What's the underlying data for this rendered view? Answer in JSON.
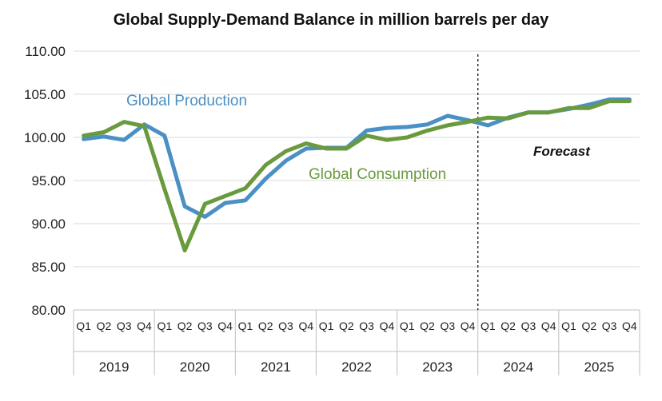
{
  "chart_data": {
    "type": "line",
    "title": "Global Supply-Demand Balance in million barrels per day",
    "ylim": [
      80,
      110
    ],
    "yticks": [
      "80.00",
      "85.00",
      "90.00",
      "95.00",
      "100.00",
      "105.00",
      "110.00"
    ],
    "years": [
      "2019",
      "2020",
      "2021",
      "2022",
      "2023",
      "2024",
      "2025"
    ],
    "quarters": [
      "Q1",
      "Q2",
      "Q3",
      "Q4"
    ],
    "categories": [
      "2019 Q1",
      "2019 Q2",
      "2019 Q3",
      "2019 Q4",
      "2020 Q1",
      "2020 Q2",
      "2020 Q3",
      "2020 Q4",
      "2021 Q1",
      "2021 Q2",
      "2021 Q3",
      "2021 Q4",
      "2022 Q1",
      "2022 Q2",
      "2022 Q3",
      "2022 Q4",
      "2023 Q1",
      "2023 Q2",
      "2023 Q3",
      "2023 Q4",
      "2024 Q1",
      "2024 Q2",
      "2024 Q3",
      "2024 Q4",
      "2025 Q1",
      "2025 Q2",
      "2025 Q3",
      "2025 Q4"
    ],
    "series": [
      {
        "name": "Global Production",
        "color": "#4a90c4",
        "values": [
          99.8,
          100.1,
          99.7,
          101.5,
          100.2,
          92.0,
          90.8,
          92.4,
          92.7,
          95.2,
          97.3,
          98.7,
          98.8,
          98.8,
          100.8,
          101.1,
          101.2,
          101.5,
          102.5,
          102.0,
          101.4,
          102.3,
          102.9,
          102.9,
          103.3,
          103.8,
          104.4,
          104.4
        ]
      },
      {
        "name": "Global Consumption",
        "color": "#6a9a3e",
        "values": [
          100.2,
          100.6,
          101.8,
          101.3,
          94.0,
          86.9,
          92.3,
          93.2,
          94.1,
          96.8,
          98.4,
          99.3,
          98.7,
          98.7,
          100.2,
          99.7,
          100.0,
          100.8,
          101.4,
          101.8,
          102.3,
          102.2,
          102.9,
          102.9,
          103.4,
          103.4,
          104.2,
          104.2
        ]
      }
    ],
    "annotations": {
      "forecast_text": "Forecast",
      "forecast_start_after": "2023 Q4"
    },
    "grid": "horizontal",
    "legend": "inline labels"
  }
}
